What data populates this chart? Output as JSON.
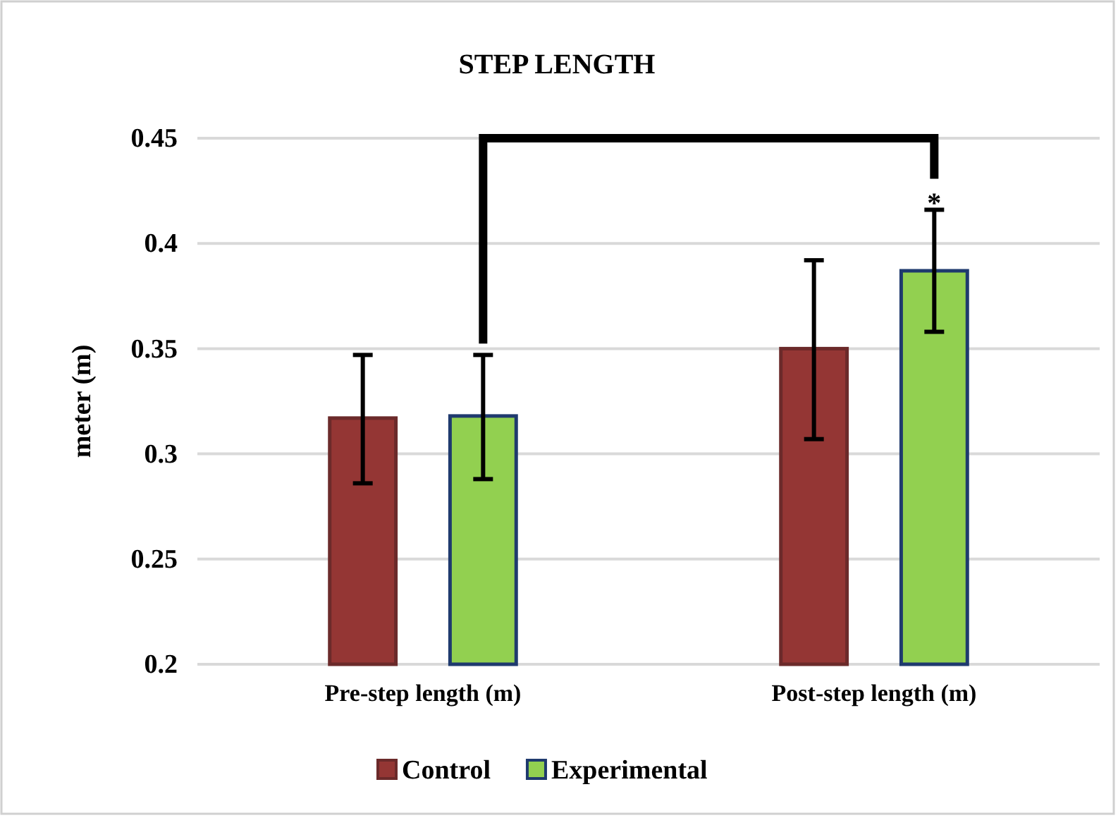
{
  "chart_data": {
    "type": "bar",
    "title": "STEP LENGTH",
    "ylabel": "meter (m)",
    "categories": [
      "Pre-step length (m)",
      "Post-step length (m)"
    ],
    "series": [
      {
        "name": "Control",
        "color": "#943634",
        "values": [
          0.317,
          0.35
        ],
        "errors": [
          [
            0.286,
            0.347
          ],
          [
            0.307,
            0.392
          ]
        ]
      },
      {
        "name": "Experimental",
        "color": "#92d050",
        "values": [
          0.318,
          0.387
        ],
        "errors": [
          [
            0.288,
            0.347
          ],
          [
            0.358,
            0.416
          ]
        ]
      }
    ],
    "ylim": [
      0.2,
      0.45
    ],
    "yticks": [
      0.2,
      0.25,
      0.3,
      0.35,
      0.4,
      0.45
    ],
    "grid": "y",
    "legend": "bottom",
    "annotations": [
      "*"
    ]
  }
}
